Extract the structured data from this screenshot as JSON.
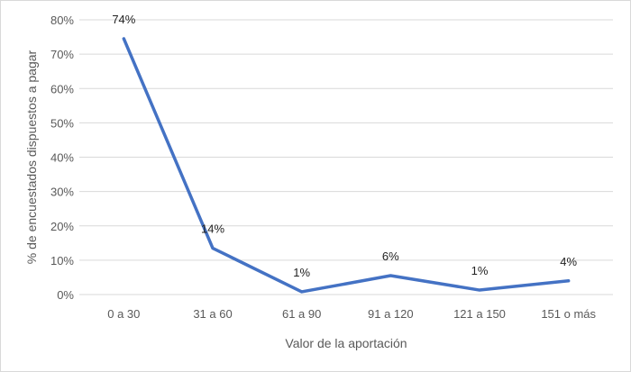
{
  "chart_data": {
    "type": "line",
    "categories": [
      "0 a 30",
      "31 a 60",
      "61 a 90",
      "91 a 120",
      "121 a 150",
      "151 o más"
    ],
    "series": [
      {
        "values": [
          74.5,
          13.5,
          0.8,
          5.5,
          1.3,
          4.0
        ]
      }
    ],
    "data_labels": [
      "74%",
      "14%",
      "1%",
      "6%",
      "1%",
      "4%"
    ],
    "xlabel": "Valor de la aportación",
    "ylabel": "% de  encuestados dispuestos a pagar",
    "ylim": [
      0,
      80
    ],
    "yticks": [
      "0%",
      "10%",
      "20%",
      "30%",
      "40%",
      "50%",
      "60%",
      "70%",
      "80%"
    ],
    "grid": true,
    "legend": "none",
    "line_color": "#4472c4",
    "grid_color": "#d9d9d9"
  }
}
